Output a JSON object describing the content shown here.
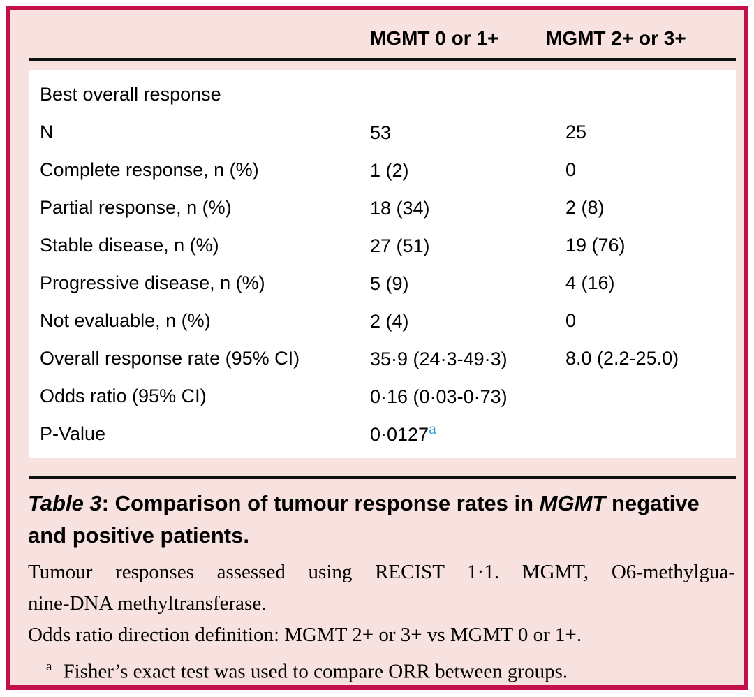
{
  "colors": {
    "frame_border": "#c21048",
    "panel_background": "#f8e2e0",
    "table_background": "#ffffff",
    "rule": "#111111",
    "text": "#000000",
    "footnote_marker_blue": "#2b9cd8"
  },
  "header": {
    "col1": "MGMT 0 or 1+",
    "col2": "MGMT 2+ or 3+"
  },
  "rows": [
    {
      "label": "Best overall response",
      "v1": "",
      "v2": ""
    },
    {
      "label": "N",
      "v1": "53",
      "v2": "25"
    },
    {
      "label": "Complete response, n (%)",
      "v1": "1 (2)",
      "v2": "0"
    },
    {
      "label": "Partial response, n (%)",
      "v1": "18 (34)",
      "v2": "2 (8)"
    },
    {
      "label": "Stable disease, n (%)",
      "v1": "27 (51)",
      "v2": "19 (76)"
    },
    {
      "label": "Progressive disease, n (%)",
      "v1": "5 (9)",
      "v2": "4 (16)"
    },
    {
      "label": "Not evaluable, n (%)",
      "v1": "2 (4)",
      "v2": "0"
    },
    {
      "label": "Overall response rate (95% CI)",
      "v1": "35·9 (24·3-49·3)",
      "v2": "8.0 (2.2-25.0)"
    },
    {
      "label": "Odds ratio (95% CI)",
      "v1": "0·16 (0·03-0·73)",
      "v2": ""
    },
    {
      "label": "P-Value",
      "v1": "0·0127",
      "v1_sup": "a",
      "v2": ""
    }
  ],
  "caption": {
    "label": "Table 3",
    "rest_before_gene": ": Comparison of tumour response rates in ",
    "gene": "MGMT",
    "after_gene": " negative and positive patients."
  },
  "notes": {
    "line1": "Tumour responses assessed using RECIST 1·1. MGMT, O6-methylgua-",
    "line2": "nine-DNA methyltransferase.",
    "line3": "Odds ratio direction definition: MGMT 2+ or 3+ vs MGMT 0 or 1+.",
    "footnote_marker": "a",
    "footnote_text": "Fisher’s exact test was used to compare ORR between groups."
  }
}
